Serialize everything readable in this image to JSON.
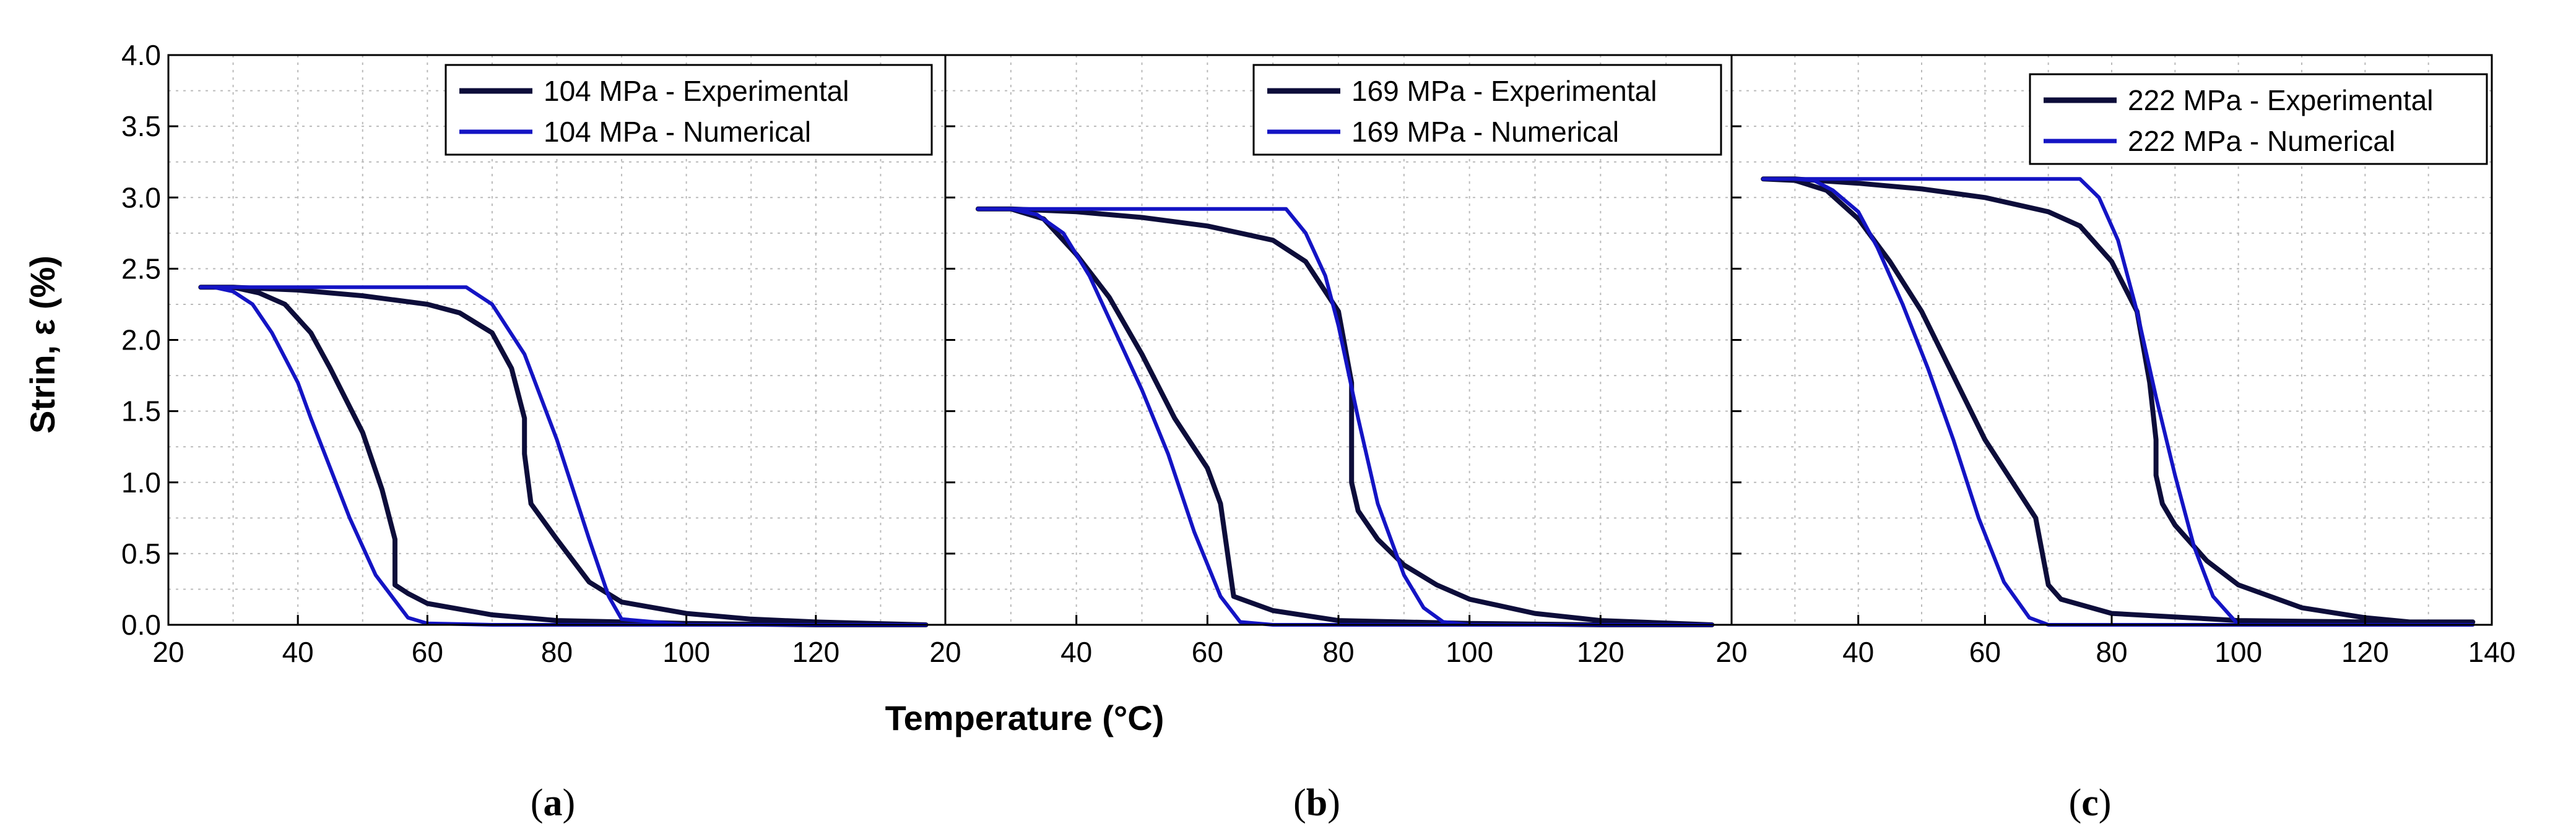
{
  "figure": {
    "y_axis_label": "Strin, ε (%)",
    "x_axis_label": "Temperature (°C)",
    "captions": [
      {
        "open": "(",
        "letter": "a",
        "close": ")"
      },
      {
        "open": "(",
        "letter": "b",
        "close": ")"
      },
      {
        "open": "(",
        "letter": "c",
        "close": ")"
      }
    ],
    "colors": {
      "experimental": "#0d0d3a",
      "numerical": "#1414c4",
      "grid": "#bbbbbb",
      "axis": "#000000"
    }
  },
  "chart_data": [
    {
      "type": "line",
      "xlim": [
        20,
        140
      ],
      "ylim": [
        0,
        4.0
      ],
      "xticks": [
        "20",
        "40",
        "60",
        "80",
        "100",
        "120"
      ],
      "yticks": [
        "0.0",
        "0.5",
        "1.0",
        "1.5",
        "2.0",
        "2.5",
        "3.0",
        "3.5",
        "4.0"
      ],
      "legend": {
        "position": "top-right"
      },
      "series": [
        {
          "name": "104 MPa -  Experimental",
          "kind": "experimental",
          "x": [
            25,
            30,
            40,
            50,
            60,
            65,
            70,
            73,
            75,
            75,
            76,
            80,
            85,
            90,
            100,
            110,
            120,
            137,
            120,
            100,
            80,
            70,
            60,
            57,
            55,
            55,
            53,
            50,
            45,
            42,
            38,
            34,
            30,
            25
          ],
          "y": [
            2.37,
            2.37,
            2.35,
            2.31,
            2.25,
            2.19,
            2.05,
            1.8,
            1.45,
            1.2,
            0.85,
            0.6,
            0.3,
            0.16,
            0.08,
            0.04,
            0.02,
            0.0,
            0.0,
            0.01,
            0.03,
            0.07,
            0.15,
            0.22,
            0.28,
            0.6,
            0.95,
            1.35,
            1.8,
            2.05,
            2.25,
            2.33,
            2.37,
            2.37
          ]
        },
        {
          "name": "104 MPa -  Numerical",
          "kind": "numerical",
          "x": [
            25,
            30,
            40,
            50,
            60,
            66,
            70,
            75,
            80,
            85,
            88,
            90,
            100,
            137,
            100,
            70,
            60,
            57,
            52,
            48,
            45,
            42,
            40,
            36,
            33,
            30,
            27,
            25
          ],
          "y": [
            2.37,
            2.37,
            2.37,
            2.37,
            2.37,
            2.37,
            2.25,
            1.9,
            1.3,
            0.6,
            0.2,
            0.04,
            0.0,
            0.0,
            0.0,
            0.0,
            0.01,
            0.05,
            0.35,
            0.75,
            1.1,
            1.45,
            1.7,
            2.05,
            2.25,
            2.34,
            2.37,
            2.37
          ]
        }
      ]
    },
    {
      "type": "line",
      "xlim": [
        20,
        140
      ],
      "ylim": [
        0,
        4.0
      ],
      "xticks": [
        "20",
        "40",
        "60",
        "80",
        "100",
        "120"
      ],
      "yticks": [],
      "legend": {
        "position": "top-right"
      },
      "series": [
        {
          "name": "169 MPa - Experimental",
          "kind": "experimental",
          "x": [
            25,
            30,
            40,
            50,
            60,
            70,
            75,
            80,
            82,
            82,
            83,
            86,
            90,
            95,
            100,
            110,
            120,
            137,
            120,
            100,
            80,
            70,
            64,
            62,
            60,
            55,
            50,
            45,
            40,
            35,
            30,
            25
          ],
          "y": [
            2.92,
            2.92,
            2.9,
            2.86,
            2.8,
            2.7,
            2.55,
            2.2,
            1.7,
            1.0,
            0.8,
            0.6,
            0.42,
            0.28,
            0.18,
            0.08,
            0.03,
            0.0,
            0.0,
            0.01,
            0.03,
            0.1,
            0.2,
            0.85,
            1.1,
            1.45,
            1.9,
            2.3,
            2.6,
            2.85,
            2.92,
            2.92
          ]
        },
        {
          "name": "169 MPa - Numerical",
          "kind": "numerical",
          "x": [
            25,
            40,
            60,
            72,
            75,
            78,
            80,
            83,
            86,
            90,
            93,
            96,
            100,
            137,
            100,
            70,
            65,
            62,
            58,
            54,
            50,
            46,
            42,
            38,
            34,
            30,
            27,
            25
          ],
          "y": [
            2.92,
            2.92,
            2.92,
            2.92,
            2.75,
            2.45,
            2.1,
            1.45,
            0.85,
            0.35,
            0.12,
            0.02,
            0.0,
            0.0,
            0.0,
            0.0,
            0.02,
            0.2,
            0.65,
            1.2,
            1.65,
            2.05,
            2.45,
            2.75,
            2.88,
            2.92,
            2.92,
            2.92
          ]
        }
      ]
    },
    {
      "type": "line",
      "xlim": [
        20,
        140
      ],
      "ylim": [
        0,
        4.0
      ],
      "xticks": [
        "20",
        "40",
        "60",
        "80",
        "100",
        "120",
        "140"
      ],
      "yticks": [],
      "legend": {
        "position": "top-right"
      },
      "series": [
        {
          "name": "222 MPa - Experimental",
          "kind": "experimental",
          "x": [
            25,
            30,
            40,
            50,
            60,
            70,
            75,
            80,
            84,
            86,
            87,
            87,
            88,
            90,
            95,
            100,
            110,
            120,
            127,
            137,
            120,
            100,
            80,
            72,
            70,
            68,
            60,
            55,
            50,
            45,
            40,
            35,
            30,
            25
          ],
          "y": [
            3.13,
            3.13,
            3.1,
            3.06,
            3.0,
            2.9,
            2.8,
            2.55,
            2.2,
            1.7,
            1.3,
            1.05,
            0.85,
            0.7,
            0.45,
            0.28,
            0.12,
            0.05,
            0.02,
            0.02,
            0.02,
            0.03,
            0.08,
            0.18,
            0.28,
            0.75,
            1.3,
            1.75,
            2.2,
            2.55,
            2.85,
            3.05,
            3.12,
            3.13
          ]
        },
        {
          "name": "222 MPa - Numerical",
          "kind": "numerical",
          "x": [
            25,
            40,
            60,
            75,
            78,
            81,
            84,
            87,
            90,
            93,
            96,
            100,
            137,
            100,
            80,
            70,
            67,
            63,
            59,
            55,
            51,
            47,
            43,
            40,
            36,
            33,
            30,
            25
          ],
          "y": [
            3.13,
            3.13,
            3.13,
            3.13,
            3.0,
            2.7,
            2.2,
            1.6,
            1.05,
            0.55,
            0.2,
            0.0,
            0.0,
            0.0,
            0.0,
            0.0,
            0.05,
            0.3,
            0.75,
            1.3,
            1.8,
            2.25,
            2.65,
            2.9,
            3.05,
            3.12,
            3.13,
            3.13
          ]
        }
      ]
    }
  ]
}
